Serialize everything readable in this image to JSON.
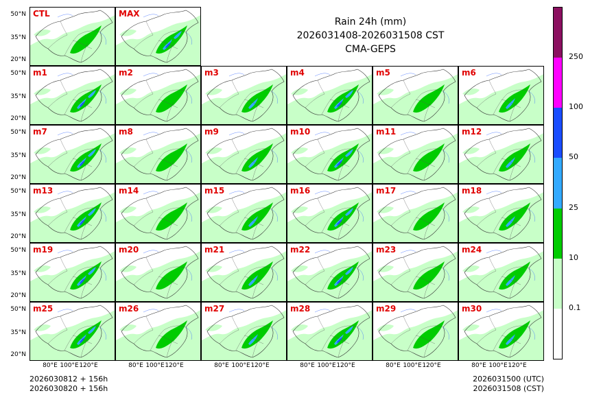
{
  "title": {
    "line1": "Rain 24h (mm)",
    "line2": "2026031408-2026031508 CST",
    "line3": "CMA-GEPS"
  },
  "panels": [
    "CTL",
    "MAX",
    "m1",
    "m2",
    "m3",
    "m4",
    "m5",
    "m6",
    "m7",
    "m8",
    "m9",
    "m10",
    "m11",
    "m12",
    "m13",
    "m14",
    "m15",
    "m16",
    "m17",
    "m18",
    "m19",
    "m20",
    "m21",
    "m22",
    "m23",
    "m24",
    "m25",
    "m26",
    "m27",
    "m28",
    "m29",
    "m30"
  ],
  "lat_labels": [
    "50°N",
    "35°N",
    "20°N"
  ],
  "lon_labels": [
    "80°E",
    "100°E",
    "120°E"
  ],
  "colorbar": {
    "ticks": [
      "0.1",
      "10",
      "25",
      "50",
      "100",
      "250"
    ],
    "colors": [
      "#ffffff",
      "#c8ffc8",
      "#00cc00",
      "#33aaff",
      "#1a4dff",
      "#ff00ff",
      "#8b1060"
    ]
  },
  "footer": {
    "left1": "2026030812 + 156h",
    "left2": "2026030820 + 156h",
    "right1": "2026031500 (UTC)",
    "right2": "2026031508 (CST)"
  }
}
